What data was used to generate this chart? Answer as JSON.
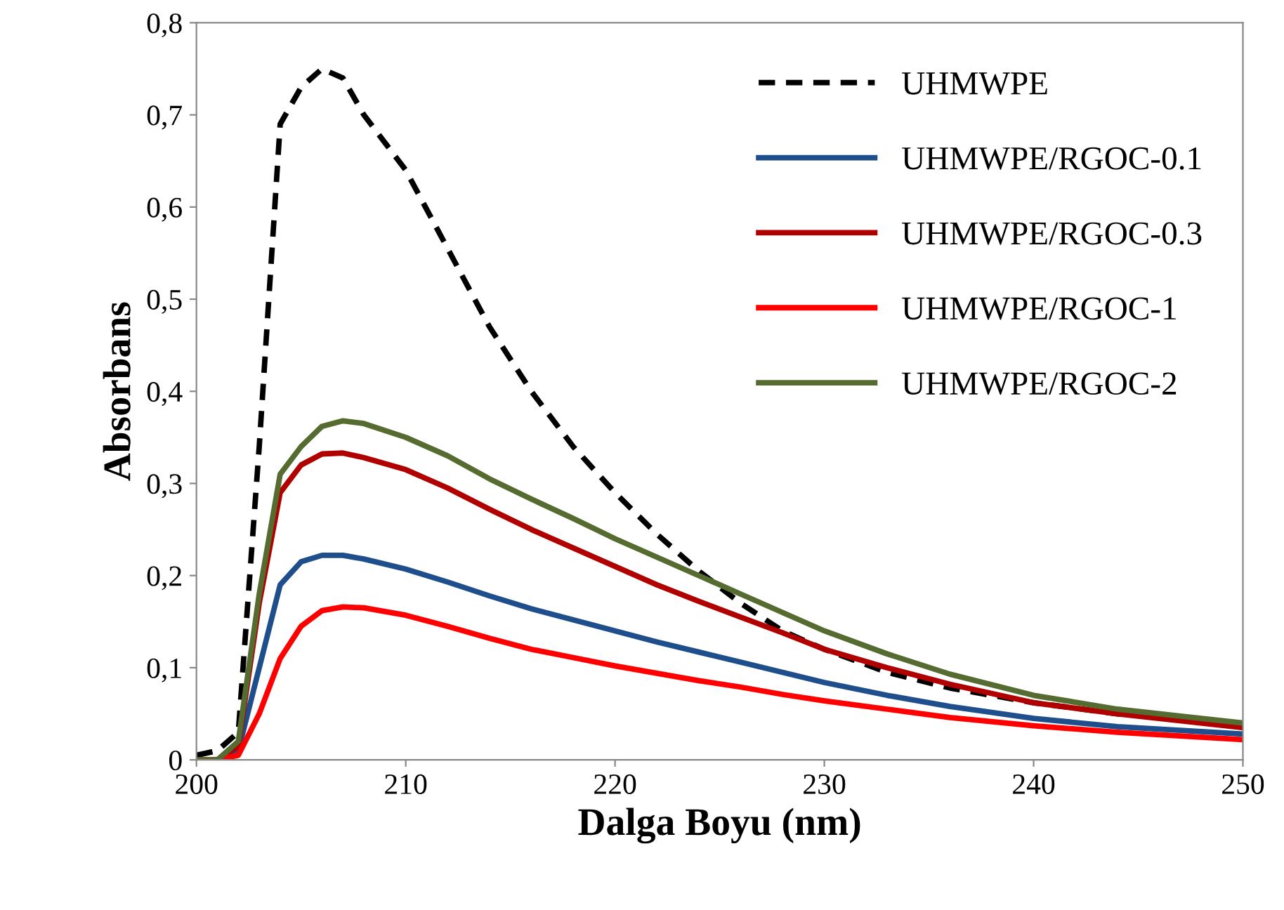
{
  "chart_data": {
    "type": "line",
    "xlabel": "Dalga Boyu (nm)",
    "ylabel": "Absorbans",
    "x": [
      200,
      201,
      202,
      203,
      204,
      205,
      206,
      207,
      208,
      210,
      212,
      214,
      216,
      218,
      220,
      222,
      224,
      226,
      228,
      230,
      233,
      236,
      240,
      244,
      250
    ],
    "series": [
      {
        "name": "UHMWPE",
        "color": "#000000",
        "line_style": "dashed",
        "values": [
          0.005,
          0.01,
          0.03,
          0.34,
          0.69,
          0.73,
          0.75,
          0.74,
          0.7,
          0.64,
          0.555,
          0.47,
          0.4,
          0.34,
          0.29,
          0.245,
          0.205,
          0.17,
          0.14,
          0.12,
          0.095,
          0.078,
          0.062,
          0.05,
          0.038
        ]
      },
      {
        "name": "UHMWPE/RGOC-0.1",
        "color": "#1f4e8c",
        "values": [
          0.0,
          0.0,
          0.01,
          0.1,
          0.19,
          0.215,
          0.222,
          0.222,
          0.218,
          0.207,
          0.193,
          0.178,
          0.164,
          0.152,
          0.14,
          0.128,
          0.117,
          0.106,
          0.095,
          0.084,
          0.07,
          0.058,
          0.045,
          0.036,
          0.028
        ]
      },
      {
        "name": "UHMWPE/RGOC-0.3",
        "color": "#b00000",
        "values": [
          0.0,
          0.0,
          0.015,
          0.17,
          0.29,
          0.32,
          0.332,
          0.333,
          0.328,
          0.315,
          0.295,
          0.272,
          0.25,
          0.23,
          0.21,
          0.19,
          0.172,
          0.155,
          0.138,
          0.12,
          0.1,
          0.082,
          0.062,
          0.05,
          0.035
        ]
      },
      {
        "name": "UHMWPE/RGOC-1",
        "color": "#ff0000",
        "values": [
          0.0,
          0.0,
          0.005,
          0.05,
          0.11,
          0.145,
          0.162,
          0.166,
          0.165,
          0.157,
          0.145,
          0.132,
          0.12,
          0.111,
          0.102,
          0.094,
          0.086,
          0.079,
          0.071,
          0.064,
          0.055,
          0.046,
          0.037,
          0.03,
          0.022
        ]
      },
      {
        "name": "UHMWPE/RGOC-2",
        "color": "#556b2f",
        "values": [
          0.0,
          0.0,
          0.02,
          0.18,
          0.31,
          0.34,
          0.362,
          0.368,
          0.365,
          0.35,
          0.33,
          0.305,
          0.283,
          0.262,
          0.24,
          0.22,
          0.2,
          0.18,
          0.16,
          0.14,
          0.115,
          0.093,
          0.07,
          0.055,
          0.04
        ]
      }
    ],
    "xlim": [
      200,
      250
    ],
    "xticks": [
      200,
      210,
      220,
      230,
      240,
      250
    ],
    "ylim": [
      0,
      0.8
    ],
    "yticks": [
      {
        "value": 0,
        "label": "0"
      },
      {
        "value": 0.1,
        "label": "0,1"
      },
      {
        "value": 0.2,
        "label": "0,2"
      },
      {
        "value": 0.3,
        "label": "0,3"
      },
      {
        "value": 0.4,
        "label": "0,4"
      },
      {
        "value": 0.5,
        "label": "0,5"
      },
      {
        "value": 0.6,
        "label": "0,6"
      },
      {
        "value": 0.7,
        "label": "0,7"
      },
      {
        "value": 0.8,
        "label": "0,8"
      }
    ],
    "grid": false,
    "legend": "top right",
    "marker": "none"
  }
}
